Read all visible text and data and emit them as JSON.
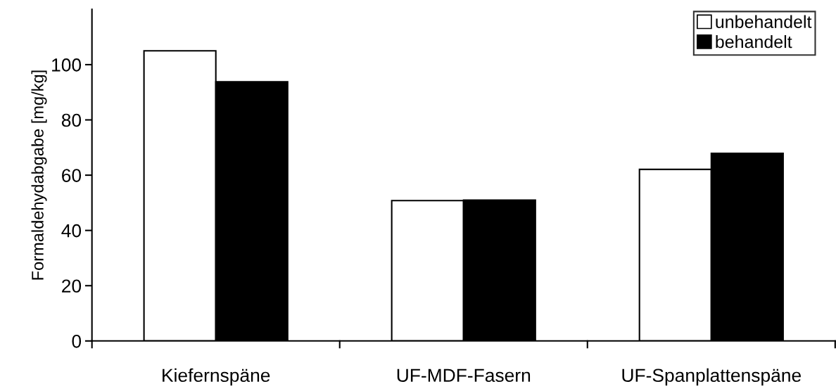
{
  "chart_data": {
    "type": "bar",
    "ylabel": "Formaldehydabgabe [mg/kg]",
    "categories": [
      "Kiefernspäne",
      "UF-MDF-Fasern",
      "UF-Spanplattenspäne"
    ],
    "series": [
      {
        "name": "unbehandelt",
        "color": "#ffffff",
        "values": [
          105,
          50.8,
          62.1
        ]
      },
      {
        "name": "behandelt",
        "color": "#000000",
        "values": [
          93.8,
          51,
          67.9
        ]
      }
    ],
    "ylim": [
      0,
      120
    ],
    "yticks": [
      0,
      20,
      40,
      60,
      80,
      100
    ],
    "grid": false,
    "legend": "top right"
  }
}
